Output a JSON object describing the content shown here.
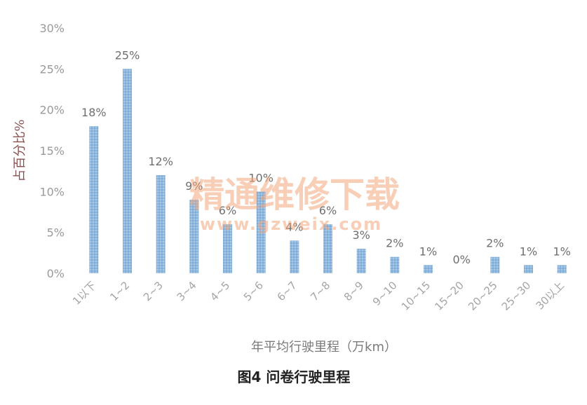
{
  "chart_data": {
    "type": "bar",
    "categories": [
      "1以下",
      "1~2",
      "2~3",
      "3~4",
      "4~5",
      "5~6",
      "6~7",
      "7~8",
      "8~9",
      "9~10",
      "10~15",
      "15~20",
      "20~25",
      "25~30",
      "30以上"
    ],
    "values": [
      18,
      25,
      12,
      9,
      6,
      10,
      4,
      6,
      3,
      2,
      1,
      0,
      2,
      1,
      1
    ],
    "value_labels": [
      "18%",
      "25%",
      "12%",
      "9%",
      "6%",
      "10%",
      "4%",
      "6%",
      "3%",
      "2%",
      "1%",
      "0%",
      "2%",
      "1%",
      "1%"
    ],
    "y_ticks": [
      "0%",
      "5%",
      "10%",
      "15%",
      "20%",
      "25%",
      "30%"
    ],
    "ylim": [
      0,
      30
    ],
    "xlabel": "年平均行驶里程（万km）",
    "ylabel": "占百分比%",
    "grid": false,
    "legend": "none",
    "bar_color": "#8fb8df"
  },
  "caption": "图4  问卷行驶里程",
  "watermark": {
    "line1": "精通维修下载",
    "line2": "www.gzweix.com"
  }
}
